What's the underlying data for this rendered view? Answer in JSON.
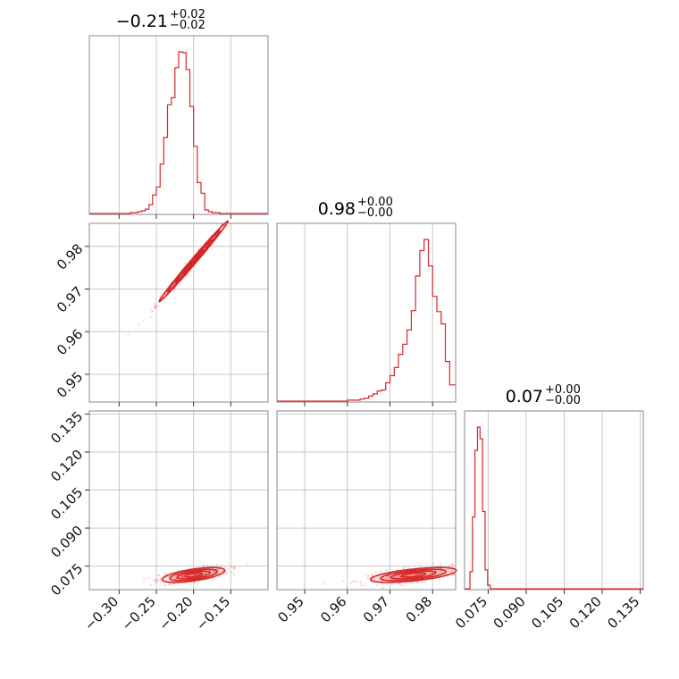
{
  "chart_data": {
    "type": "corner",
    "color": "#d62728",
    "grid": true,
    "parameters": [
      {
        "range": [
          -0.34,
          -0.1
        ],
        "ticks": [
          -0.3,
          -0.25,
          -0.2,
          -0.15
        ],
        "tick_labels": [
          "−0.30",
          "−0.25",
          "−0.20",
          "−0.15"
        ]
      },
      {
        "range": [
          0.9435,
          0.9854
        ],
        "ticks": [
          0.95,
          0.96,
          0.97,
          0.98
        ],
        "tick_labels": [
          "0.95",
          "0.96",
          "0.97",
          "0.98"
        ]
      },
      {
        "range": [
          0.0657,
          0.1362
        ],
        "ticks": [
          0.075,
          0.09,
          0.105,
          0.12,
          0.135
        ],
        "tick_labels": [
          "0.075",
          "0.090",
          "0.105",
          "0.120",
          "0.135"
        ]
      }
    ],
    "titles": [
      {
        "value": "−0.21",
        "plus": "+0.02",
        "minus": "−0.02"
      },
      {
        "value": "0.98",
        "plus": "+0.00",
        "minus": "−0.00"
      },
      {
        "value": "0.07",
        "plus": "+0.00",
        "minus": "−0.00"
      }
    ],
    "histograms": [
      {
        "bin_edges": [
          -0.34,
          -0.335,
          -0.33,
          -0.325,
          -0.32,
          -0.315,
          -0.31,
          -0.305,
          -0.3,
          -0.295,
          -0.29,
          -0.285,
          -0.28,
          -0.275,
          -0.27,
          -0.265,
          -0.26,
          -0.255,
          -0.25,
          -0.245,
          -0.24,
          -0.235,
          -0.23,
          -0.225,
          -0.22,
          -0.215,
          -0.21,
          -0.205,
          -0.2,
          -0.195,
          -0.19,
          -0.185,
          -0.18,
          -0.175,
          -0.17,
          -0.165,
          -0.16,
          -0.155,
          -0.15,
          -0.145,
          -0.14,
          -0.135,
          -0.13,
          -0.125,
          -0.12,
          -0.115,
          -0.11,
          -0.105,
          -0.1
        ],
        "counts": [
          0,
          0,
          0,
          0,
          0,
          0,
          0,
          0,
          0,
          0,
          0,
          1,
          1,
          2,
          3,
          5,
          10,
          21,
          30,
          56,
          86,
          123,
          131,
          165,
          183,
          182,
          163,
          121,
          76,
          35,
          23,
          4,
          2,
          1,
          1,
          0,
          0,
          0,
          0,
          0,
          0,
          0,
          0,
          0,
          0,
          0,
          0,
          0
        ]
      },
      {
        "bin_edges": [
          0.9435,
          0.944,
          0.945,
          0.946,
          0.947,
          0.948,
          0.949,
          0.95,
          0.951,
          0.952,
          0.953,
          0.954,
          0.955,
          0.956,
          0.957,
          0.958,
          0.959,
          0.96,
          0.961,
          0.962,
          0.963,
          0.964,
          0.965,
          0.966,
          0.967,
          0.968,
          0.969,
          0.97,
          0.971,
          0.972,
          0.973,
          0.974,
          0.975,
          0.976,
          0.977,
          0.978,
          0.979,
          0.98,
          0.981,
          0.982,
          0.983,
          0.984,
          0.9854
        ],
        "counts": [
          0,
          0,
          0,
          0,
          0,
          0,
          0,
          0,
          0,
          0,
          0,
          0,
          0,
          0,
          0,
          0,
          0,
          1,
          1,
          1,
          2,
          3,
          5,
          7,
          10,
          11,
          18,
          25,
          33,
          46,
          56,
          70,
          89,
          123,
          148,
          159,
          133,
          103,
          88,
          76,
          39,
          16
        ]
      },
      {
        "bin_edges": [
          0.0657,
          0.0668,
          0.0678,
          0.0688,
          0.0698,
          0.0708,
          0.0718,
          0.0728,
          0.0738,
          0.0748,
          0.0758,
          0.0768,
          0.0778,
          0.0788,
          0.08,
          0.085,
          0.09,
          0.095,
          0.1,
          0.105,
          0.11,
          0.115,
          0.12,
          0.125,
          0.13,
          0.1362
        ],
        "counts": [
          0,
          0,
          19,
          80,
          154,
          180,
          167,
          86,
          21,
          4,
          0,
          0,
          0,
          0,
          0,
          0,
          0,
          0,
          0,
          0,
          0,
          0,
          0,
          0,
          0
        ]
      }
    ],
    "pairs": [
      {
        "x": 0,
        "y": 1,
        "center": [
          -0.2,
          0.9765
        ],
        "sx": 0.022,
        "sy": 0.0045,
        "rho": 0.995
      },
      {
        "x": 0,
        "y": 2,
        "center": [
          -0.2,
          0.0715
        ],
        "sx": 0.02,
        "sy": 0.0014,
        "rho": 0.6
      },
      {
        "x": 1,
        "y": 2,
        "center": [
          0.9755,
          0.0715
        ],
        "sx": 0.0048,
        "sy": 0.0014,
        "rho": 0.6
      }
    ]
  }
}
